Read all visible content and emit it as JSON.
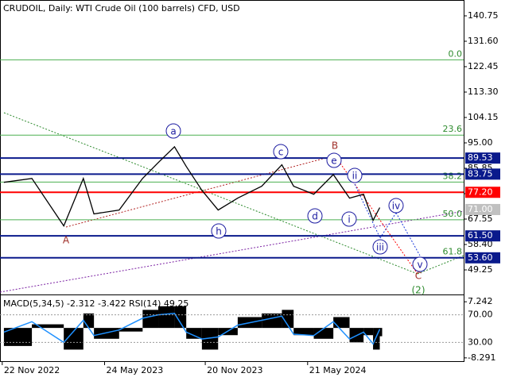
{
  "chart_data": [
    {
      "type": "line",
      "title": "CRUDOIL, Daily:  WTI Crude Oil (100 barrels) CFD, USD",
      "x": [
        "2022-11-25",
        "2023-01-14",
        "2023-03-12",
        "2023-04-16",
        "2023-05-05",
        "2023-06-19",
        "2023-07-31",
        "2023-08-28",
        "2023-09-26",
        "2023-10-17",
        "2023-11-14",
        "2023-12-13",
        "2024-01-17",
        "2024-02-29",
        "2024-04-05",
        "2024-04-26",
        "2024-06-01",
        "2024-07-06",
        "2024-08-04",
        "2024-08-29",
        "2024-09-15",
        "2024-09-27"
      ],
      "series": [
        {
          "color": "#000000",
          "values": [
            80.8,
            82.2,
            65.1,
            82.2,
            69.4,
            70.8,
            82.2,
            87.9,
            93.6,
            86.5,
            77.9,
            70.8,
            75.1,
            79.4,
            87.1,
            79.4,
            76.5,
            83.6,
            75.1,
            76.5,
            67.1,
            71.7
          ]
        }
      ],
      "xlim": [
        "2022-11-18",
        "2025-02-24"
      ],
      "xticks": [
        {
          "value": "2022-11-22",
          "label": "22 Nov 2022"
        },
        {
          "value": "2023-05-24",
          "label": "24 May 2023"
        },
        {
          "value": "2023-11-20",
          "label": "20 Nov 2023"
        },
        {
          "value": "2024-05-21",
          "label": "21 May 2024"
        }
      ],
      "ylim": [
        40.68,
        146.46
      ],
      "yticks": [
        140.75,
        {
          "value": 131.6,
          "label": "131.60"
        },
        122.45,
        {
          "value": 113.3,
          "label": "113.30"
        },
        104.15,
        {
          "value": 95,
          "label": "95.00"
        },
        85.85,
        {
          "value": 76.7,
          "label": "76.70"
        },
        67.55,
        {
          "value": 58.4,
          "label": "58.40"
        },
        49.25
      ],
      "levels": [
        {
          "value": 89.53,
          "label": "89.53",
          "color": "#0a1a8c"
        },
        {
          "value": 83.75,
          "label": "83.75",
          "color": "#0a1a8c"
        },
        {
          "value": 77.2,
          "label": "77.20",
          "color": "#ff0000"
        },
        {
          "value": 71,
          "label": "71.00",
          "color": "#c0c0c0"
        },
        {
          "value": 61.5,
          "label": "61.50",
          "color": "#0a1a8c"
        },
        {
          "value": 53.6,
          "label": "53.60",
          "color": "#0a1a8c"
        }
      ],
      "fib_levels": [
        {
          "value": 124.9,
          "label": "0.0"
        },
        {
          "value": 97.8,
          "label": "23.6"
        },
        {
          "value": 80.9,
          "label": "38.2"
        },
        {
          "value": 67.3,
          "label": "50.0"
        },
        {
          "value": 53.7,
          "label": "61.8"
        }
      ],
      "wave_labels": [
        "a",
        "c",
        "e",
        "ii",
        "d",
        "i",
        "h",
        "iii",
        "iv",
        "v",
        "A",
        "B",
        "C",
        "(2)"
      ]
    },
    {
      "type": "bar",
      "title": "MACD(5,34,5) -2.312 -3.422 RSI(14) 49.25",
      "series": [
        {
          "name": "MACD",
          "color": "#000000",
          "values": [
            -5,
            1,
            -6,
            4,
            -3,
            -1,
            5,
            6,
            6,
            -3,
            -6,
            -2,
            3,
            4,
            5,
            -2,
            -3,
            3,
            -4,
            -2,
            -6,
            -2.3
          ]
        },
        {
          "name": "RSI",
          "color": "#1e90ff",
          "axis": "y2",
          "values": [
            45,
            60,
            30,
            62,
            40,
            48,
            65,
            70,
            72,
            45,
            35,
            38,
            55,
            62,
            68,
            42,
            40,
            60,
            35,
            45,
            28,
            49.25
          ]
        }
      ],
      "ylim": [
        -9.42,
        9.04
      ],
      "yticks": [
        7.242,
        -8.291
      ],
      "y2lim": [
        1.8,
        98.2
      ],
      "y2ticks": [
        {
          "value": 70,
          "label": "70.00"
        },
        {
          "value": 30,
          "label": "30.00"
        }
      ]
    }
  ]
}
